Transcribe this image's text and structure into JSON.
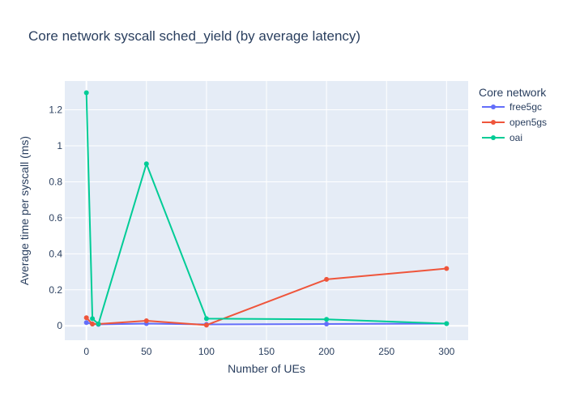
{
  "chart_data": {
    "type": "line",
    "title": "Core network syscall sched_yield (by average latency)",
    "xlabel": "Number of UEs",
    "ylabel": "Average time per syscall (ms)",
    "xlim": [
      -18,
      318
    ],
    "ylim": [
      -0.08,
      1.36
    ],
    "xticks": [
      0,
      50,
      100,
      150,
      200,
      250,
      300
    ],
    "yticks": [
      0,
      0.2,
      0.4,
      0.6,
      0.8,
      1,
      1.2
    ],
    "grid": true,
    "legend": {
      "title": "Core network",
      "placement": "top-right-outside"
    },
    "series": [
      {
        "name": "free5gc",
        "color": "#636efa",
        "x": [
          0,
          5,
          10,
          50,
          100,
          200,
          300
        ],
        "y": [
          0.018,
          0.01,
          0.008,
          0.012,
          0.008,
          0.01,
          0.012
        ]
      },
      {
        "name": "open5gs",
        "color": "#ef553b",
        "x": [
          0,
          5,
          10,
          50,
          100,
          200,
          300
        ],
        "y": [
          0.045,
          0.01,
          0.01,
          0.028,
          0.004,
          0.258,
          0.318
        ]
      },
      {
        "name": "oai",
        "color": "#00cc96",
        "x": [
          0,
          5,
          10,
          50,
          100,
          200,
          300
        ],
        "y": [
          1.295,
          0.04,
          0.01,
          0.9,
          0.04,
          0.036,
          0.012
        ]
      }
    ]
  },
  "colors": {
    "plot_background": "#e5ecf6",
    "grid": "#ffffff",
    "text": "#2a3f5f"
  }
}
